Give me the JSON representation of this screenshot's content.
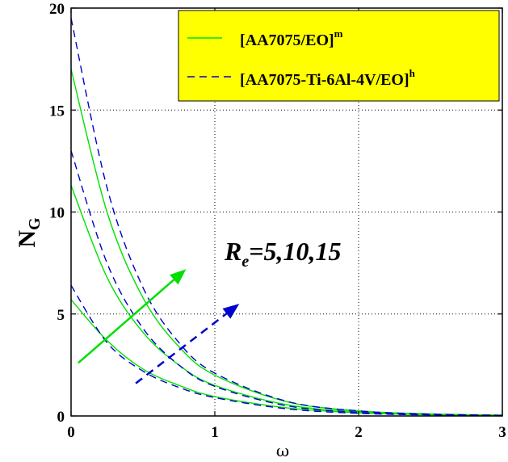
{
  "chart_data": {
    "type": "line",
    "xlabel": "ω",
    "ylabel": "N",
    "ylabel_sub": "G",
    "xlim": [
      0,
      3
    ],
    "ylim": [
      0,
      20
    ],
    "xticks": [
      0,
      1,
      2,
      3
    ],
    "yticks": [
      0,
      5,
      10,
      15,
      20
    ],
    "grid": true,
    "legend_position": "top-right",
    "legend": [
      {
        "label": "[AA7075/EO]",
        "sup": "m",
        "color": "#00e000",
        "style": "solid"
      },
      {
        "label": "[AA7075-Ti-6Al-4V/EO]",
        "sup": "h",
        "color": "#0000cc",
        "style": "dashed"
      }
    ],
    "legend_bg": "#ffff00",
    "annotation": {
      "base": "R",
      "sub": "e",
      "rest": "=5,10,15"
    },
    "series": [
      {
        "legend_index": 0,
        "Re": 5,
        "x": [
          0,
          0.25,
          0.5,
          0.75,
          1,
          1.5,
          2,
          2.5,
          3
        ],
        "y": [
          5.7,
          3.7,
          2.3,
          1.5,
          0.95,
          0.4,
          0.15,
          0.06,
          0.02
        ]
      },
      {
        "legend_index": 0,
        "Re": 10,
        "x": [
          0,
          0.25,
          0.5,
          0.75,
          1,
          1.5,
          2,
          2.5,
          3
        ],
        "y": [
          11.3,
          6.8,
          4.1,
          2.5,
          1.5,
          0.55,
          0.2,
          0.07,
          0.03
        ]
      },
      {
        "legend_index": 0,
        "Re": 15,
        "x": [
          0,
          0.25,
          0.5,
          0.75,
          1,
          1.5,
          2,
          2.5,
          3
        ],
        "y": [
          17.0,
          10.0,
          5.8,
          3.4,
          2.0,
          0.7,
          0.25,
          0.1,
          0.04
        ]
      },
      {
        "legend_index": 1,
        "Re": 5,
        "x": [
          0,
          0.25,
          0.5,
          0.75,
          1,
          1.5,
          2,
          2.5,
          3
        ],
        "y": [
          6.4,
          3.6,
          2.2,
          1.4,
          0.9,
          0.35,
          0.13,
          0.05,
          0.02
        ]
      },
      {
        "legend_index": 1,
        "Re": 10,
        "x": [
          0,
          0.25,
          0.5,
          0.75,
          1,
          1.5,
          2,
          2.5,
          3
        ],
        "y": [
          13.0,
          7.5,
          4.3,
          2.5,
          1.45,
          0.5,
          0.18,
          0.07,
          0.03
        ]
      },
      {
        "legend_index": 1,
        "Re": 15,
        "x": [
          0,
          0.25,
          0.5,
          0.75,
          1,
          1.5,
          2,
          2.5,
          3
        ],
        "y": [
          19.5,
          11.2,
          6.3,
          3.6,
          2.1,
          0.72,
          0.25,
          0.09,
          0.03
        ]
      }
    ],
    "arrows": [
      {
        "color": "#00e000",
        "style": "solid",
        "from": [
          0.05,
          2.6
        ],
        "to": [
          0.8,
          7.2
        ]
      },
      {
        "color": "#0000cc",
        "style": "dashed",
        "from": [
          0.45,
          1.6
        ],
        "to": [
          1.17,
          5.5
        ]
      }
    ]
  }
}
